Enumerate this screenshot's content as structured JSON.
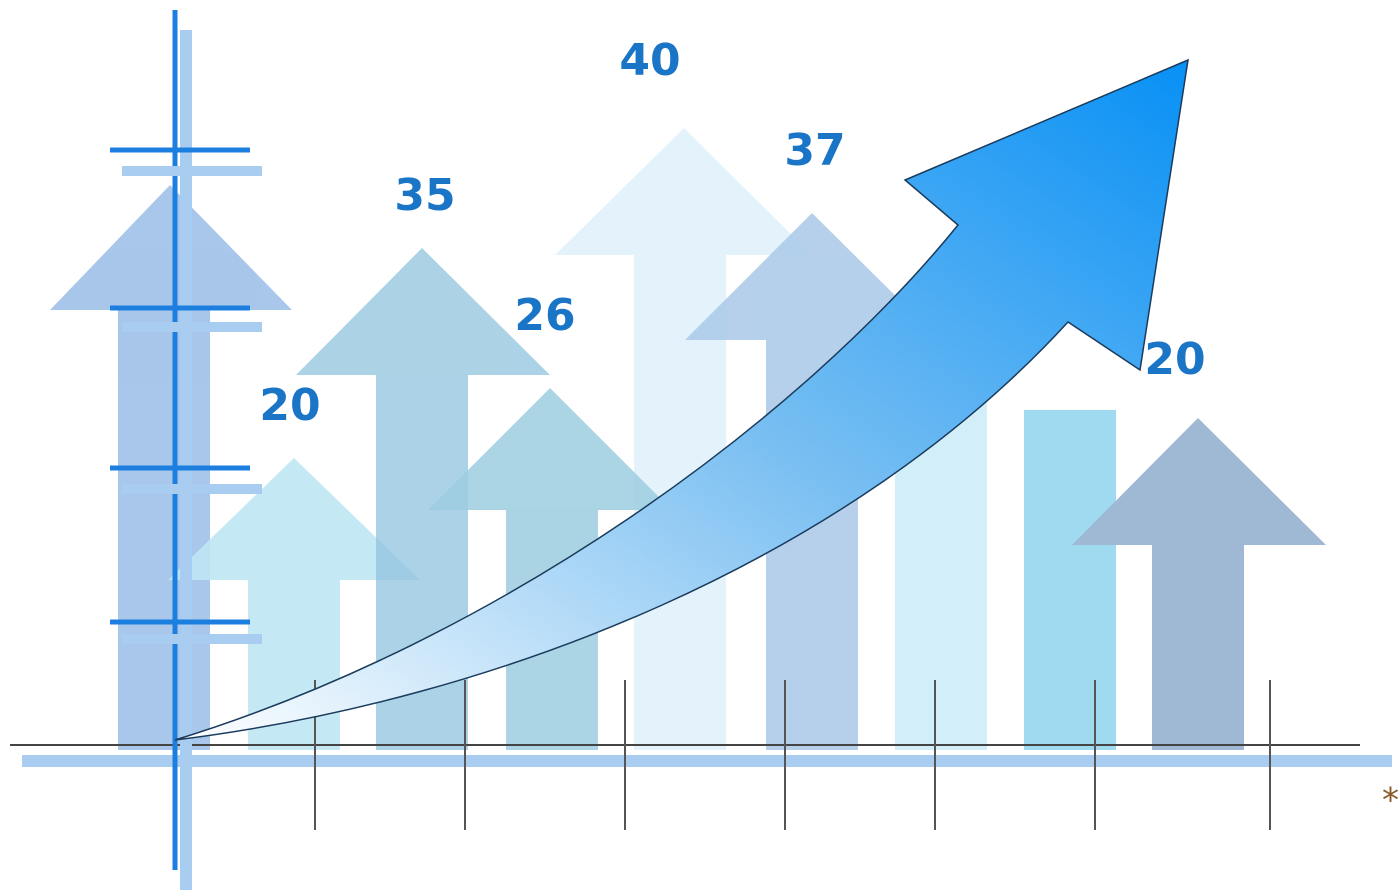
{
  "labels": [
    20,
    35,
    26,
    40,
    37,
    20
  ],
  "footnote": "*"
}
